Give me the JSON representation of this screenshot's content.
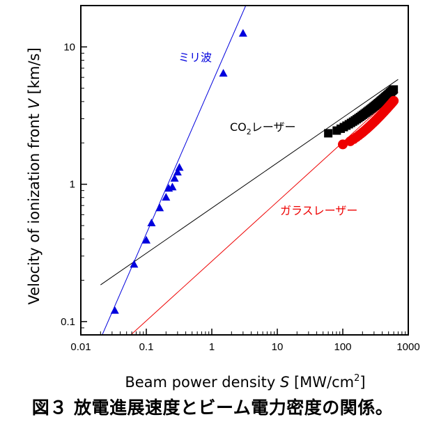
{
  "chart_data": {
    "type": "scatter",
    "title": "",
    "x_scale": "log",
    "y_scale": "log",
    "xlim": [
      0.01,
      1000
    ],
    "ylim": [
      0.08,
      20
    ],
    "grid": false,
    "x_ticks": [
      {
        "value": 0.01,
        "label": "0.01"
      },
      {
        "value": 0.1,
        "label": "0.1"
      },
      {
        "value": 1,
        "label": "1"
      },
      {
        "value": 10,
        "label": "10"
      },
      {
        "value": 100,
        "label": "100"
      },
      {
        "value": 1000,
        "label": "1000"
      }
    ],
    "y_ticks": [
      {
        "value": 0.1,
        "label": "0.1"
      },
      {
        "value": 1,
        "label": "1"
      },
      {
        "value": 10,
        "label": "10"
      }
    ],
    "xlabel": {
      "prefix": "Beam power density ",
      "var": "S",
      "unit_open": " [MW/cm",
      "sup": "2",
      "unit_close": "]"
    },
    "ylabel": {
      "prefix": "Velocity of ionization front ",
      "var": "V",
      "unit": " [km/s]"
    },
    "series": [
      {
        "name": "ミリ波",
        "color": "#0000dd",
        "marker": "triangle",
        "points": [
          [
            0.033,
            0.12
          ],
          [
            0.065,
            0.26
          ],
          [
            0.1,
            0.39
          ],
          [
            0.12,
            0.52
          ],
          [
            0.16,
            0.67
          ],
          [
            0.2,
            0.8
          ],
          [
            0.22,
            0.93
          ],
          [
            0.25,
            0.95
          ],
          [
            0.27,
            1.1
          ],
          [
            0.3,
            1.22
          ],
          [
            0.32,
            1.32
          ],
          [
            1.5,
            6.4
          ],
          [
            3.0,
            12.5
          ]
        ],
        "fit": [
          [
            0.02,
            0.075
          ],
          [
            3.3,
            20
          ]
        ]
      },
      {
        "name": "CO",
        "name_sub": "2",
        "name_suffix": "レーザー",
        "color": "#000000",
        "marker": "square",
        "cluster": {
          "x_range": [
            60,
            600
          ],
          "y_range": [
            2.35,
            4.9
          ],
          "count": 42
        },
        "fit": [
          [
            0.02,
            0.185
          ],
          [
            700,
            5.8
          ]
        ]
      },
      {
        "name": "ガラスレーザー",
        "color": "#ee0000",
        "marker": "circle",
        "cluster": {
          "x_range": [
            100,
            600
          ],
          "y_range": [
            1.95,
            4.05
          ],
          "count": 34
        },
        "fit": [
          [
            0.058,
            0.08
          ],
          [
            700,
            4.7
          ]
        ]
      }
    ]
  },
  "caption": "図３ 放電進展速度とビーム電力密度の関係。"
}
